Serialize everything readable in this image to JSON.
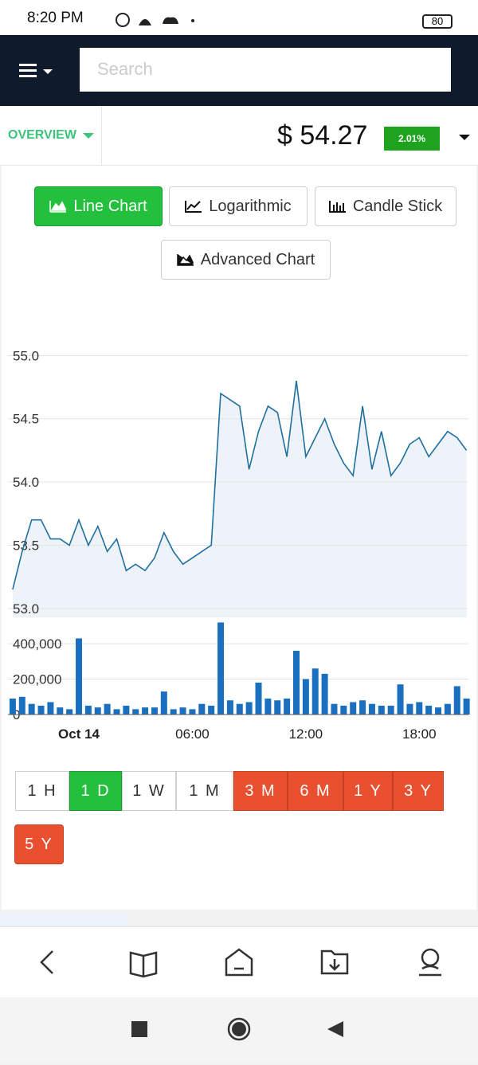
{
  "status_bar": {
    "time": "8:20 PM",
    "battery": "80"
  },
  "header": {
    "search_placeholder": "Search"
  },
  "summary": {
    "section": "OVERVIEW",
    "price": "$ 54.27",
    "change": "2.01%"
  },
  "chart_buttons": [
    "Line Chart",
    "Logarithmic",
    "Candle Stick",
    "Advanced Chart"
  ],
  "range_buttons": [
    "1 H",
    "1 D",
    "1 W",
    "1 M",
    "3 M",
    "6 M",
    "1 Y",
    "3 Y",
    "5 Y"
  ],
  "chart_data": [
    {
      "type": "line",
      "color": "#1f6f9f",
      "fill": "#eef3f9",
      "grid": true,
      "x": [
        -3.5,
        -3,
        -2.5,
        -2,
        -1.5,
        -1,
        -0.5,
        0,
        0.5,
        1,
        1.5,
        2,
        2.5,
        3,
        3.5,
        4,
        4.5,
        5,
        5.5,
        6,
        6.5,
        7,
        7.5,
        8,
        8.5,
        9,
        9.5,
        10,
        10.5,
        11,
        11.5,
        12,
        12.5,
        13,
        13.5,
        14,
        14.5,
        15,
        15.5,
        16,
        16.5,
        17,
        17.5,
        18,
        18.5,
        19,
        19.5,
        20,
        20.5
      ],
      "values": [
        53.15,
        53.45,
        53.7,
        53.7,
        53.55,
        53.55,
        53.5,
        53.7,
        53.5,
        53.65,
        53.45,
        53.55,
        53.3,
        53.35,
        53.3,
        53.4,
        53.6,
        53.45,
        53.35,
        53.4,
        53.45,
        53.5,
        54.7,
        54.65,
        54.6,
        54.1,
        54.4,
        54.6,
        54.55,
        54.2,
        54.8,
        54.2,
        54.35,
        54.5,
        54.3,
        54.15,
        54.05,
        54.6,
        54.1,
        54.4,
        54.05,
        54.15,
        54.3,
        54.35,
        54.2,
        54.3,
        54.4,
        54.35,
        54.25
      ],
      "xlim": [
        -3.75,
        20.6
      ],
      "xticks": [
        {
          "value": 0,
          "label": "Oct 14"
        },
        {
          "value": 6,
          "label": "06:00"
        },
        {
          "value": 12,
          "label": "12:00"
        },
        {
          "value": 18,
          "label": "18:00"
        }
      ],
      "ylim": [
        52.93,
        55.04
      ],
      "yticks": [
        {
          "value": 53,
          "label": "53.0"
        },
        53.5,
        {
          "value": 54,
          "label": "54.0"
        },
        54.5,
        {
          "value": 55,
          "label": "55.0"
        }
      ]
    },
    {
      "type": "bar",
      "color": "#1a6fbf",
      "grid": true,
      "x": [
        -3.5,
        -3,
        -2.5,
        -2,
        -1.5,
        -1,
        -0.5,
        0,
        0.5,
        1,
        1.5,
        2,
        2.5,
        3,
        3.5,
        4,
        4.5,
        5,
        5.5,
        6,
        6.5,
        7,
        7.5,
        8,
        8.5,
        9,
        9.5,
        10,
        10.5,
        11,
        11.5,
        12,
        12.5,
        13,
        13.5,
        14,
        14.5,
        15,
        15.5,
        16,
        16.5,
        17,
        17.5,
        18,
        18.5,
        19,
        19.5,
        20,
        20.5
      ],
      "values": [
        90000,
        100000,
        60000,
        50000,
        70000,
        40000,
        30000,
        430000,
        50000,
        40000,
        60000,
        30000,
        50000,
        30000,
        40000,
        40000,
        130000,
        30000,
        40000,
        30000,
        60000,
        50000,
        520000,
        80000,
        60000,
        70000,
        180000,
        90000,
        80000,
        90000,
        360000,
        200000,
        260000,
        230000,
        60000,
        50000,
        70000,
        80000,
        60000,
        50000,
        50000,
        170000,
        60000,
        70000,
        50000,
        40000,
        60000,
        160000,
        90000
      ],
      "xlim": [
        -3.75,
        20.6
      ],
      "ylim": [
        0,
        540000
      ],
      "yticks": [
        0,
        {
          "value": 200000,
          "label": "200,000"
        },
        {
          "value": 400000,
          "label": "400,000"
        }
      ]
    }
  ]
}
